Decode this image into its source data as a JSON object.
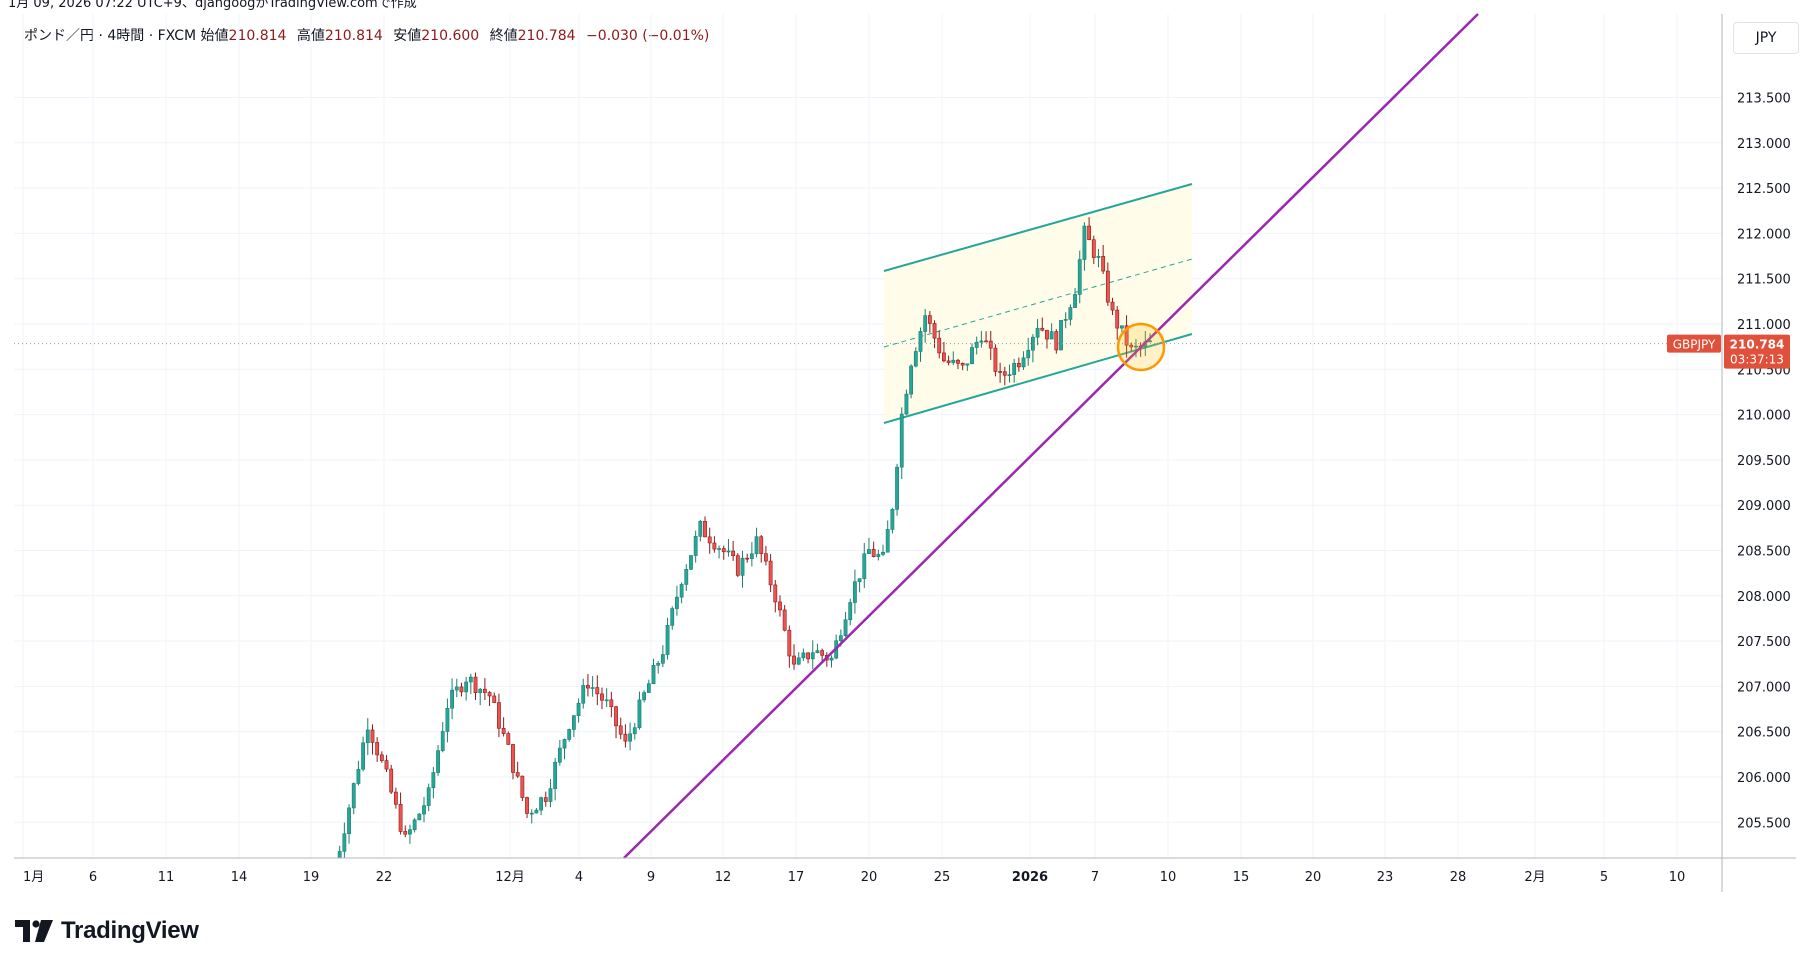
{
  "header_note": "1月 09, 2026 07:22 UTC+9、djangoogがTradingView.comで作成",
  "legend": {
    "symbol": "ポンド／円 · 4時間 · FXCM",
    "open_label": "始値",
    "open": "210.814",
    "high_label": "高値",
    "high": "210.814",
    "low_label": "安値",
    "low": "210.600",
    "close_label": "終値",
    "close": "210.784",
    "change": "−0.030 (−0.01%)"
  },
  "currency": "JPY",
  "price_tag": {
    "symbol": "GBPJPY",
    "price": "210.784",
    "countdown": "03:37:13"
  },
  "logo_text": "TradingView",
  "colors": {
    "up": "#26a69a",
    "down": "#ef5350",
    "candle_body_up": "#1b7f6e",
    "candle_body_down": "#8b1a1a",
    "trendline": "#9c27b0",
    "channel": "#26a69a",
    "channel_fill": "#fffbe6",
    "highlight_circle": "#ff9800",
    "price_tag": "#e0503b"
  },
  "chart_data": {
    "type": "candlestick",
    "symbol": "GBPJPY",
    "timeframe": "4時間",
    "ylim": [
      205.1,
      214.0
    ],
    "y_ticks": [
      "205.500",
      "206.000",
      "206.500",
      "207.000",
      "207.500",
      "208.000",
      "208.500",
      "209.000",
      "209.500",
      "210.000",
      "210.500",
      "211.000",
      "211.500",
      "212.000",
      "212.500",
      "213.000",
      "213.500"
    ],
    "x_ticks": [
      "1月",
      "6",
      "11",
      "14",
      "19",
      "22",
      "12月",
      "4",
      "9",
      "12",
      "17",
      "20",
      "25",
      "2026",
      "7",
      "10",
      "15",
      "20",
      "23",
      "28",
      "2月",
      "5",
      "10"
    ],
    "last_price": 210.784,
    "candle_path": [
      [
        0,
        205.0
      ],
      [
        4,
        205.9
      ],
      [
        7,
        206.6
      ],
      [
        11,
        206.0
      ],
      [
        15,
        205.3
      ],
      [
        20,
        205.8
      ],
      [
        24,
        206.8
      ],
      [
        28,
        207.1
      ],
      [
        33,
        206.9
      ],
      [
        37,
        206.3
      ],
      [
        41,
        205.6
      ],
      [
        45,
        205.8
      ],
      [
        50,
        206.6
      ],
      [
        54,
        207.05
      ],
      [
        58,
        206.8
      ],
      [
        62,
        206.35
      ],
      [
        66,
        206.9
      ],
      [
        70,
        207.4
      ],
      [
        74,
        208.2
      ],
      [
        78,
        208.75
      ],
      [
        82,
        208.55
      ],
      [
        86,
        208.3
      ],
      [
        90,
        208.6
      ],
      [
        94,
        208.0
      ],
      [
        98,
        207.2
      ],
      [
        102,
        207.4
      ],
      [
        106,
        207.3
      ],
      [
        110,
        208.0
      ],
      [
        114,
        208.5
      ],
      [
        117,
        208.4
      ],
      [
        119,
        209.0
      ],
      [
        121,
        210.0
      ],
      [
        123,
        210.6
      ],
      [
        126,
        211.1
      ],
      [
        130,
        210.6
      ],
      [
        134,
        210.5
      ],
      [
        138,
        210.9
      ],
      [
        142,
        210.4
      ],
      [
        146,
        210.6
      ],
      [
        150,
        211.0
      ],
      [
        154,
        210.8
      ],
      [
        158,
        211.4
      ],
      [
        160,
        212.0
      ],
      [
        163,
        211.7
      ],
      [
        166,
        211.1
      ],
      [
        168,
        210.9
      ],
      [
        170,
        210.7
      ],
      [
        174,
        210.78
      ]
    ]
  }
}
